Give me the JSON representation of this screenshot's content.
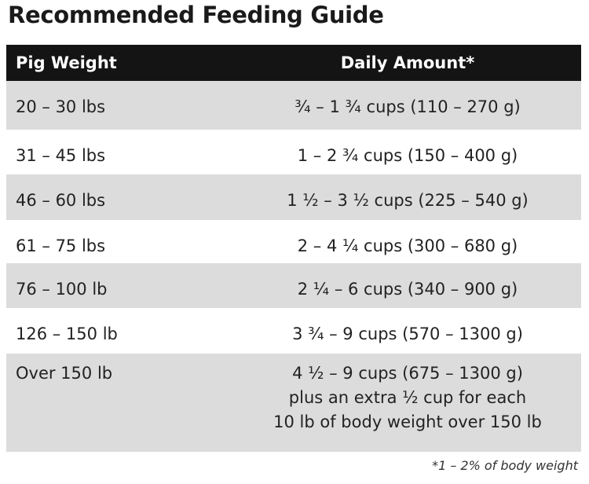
{
  "title": "Recommended Feeding Guide",
  "table": {
    "headers": [
      "Pig Weight",
      "Daily Amount*"
    ],
    "rows": [
      {
        "weight": "20 – 30 lbs",
        "amount": [
          "¾ – 1 ¾ cups (110 – 270 g)"
        ]
      },
      {
        "weight": "31 – 45 lbs",
        "amount": [
          "1 – 2 ¾ cups (150 – 400 g)"
        ]
      },
      {
        "weight": "46 – 60 lbs",
        "amount": [
          "1 ½ – 3 ½ cups (225 – 540 g)"
        ]
      },
      {
        "weight": "61 – 75 lbs",
        "amount": [
          "2 – 4 ¼ cups (300 – 680 g)"
        ]
      },
      {
        "weight": "76 – 100 lb",
        "amount": [
          "2 ¼ – 6 cups (340 – 900 g)"
        ]
      },
      {
        "weight": "126 – 150 lb",
        "amount": [
          "3 ¾ – 9 cups (570 – 1300 g)"
        ]
      },
      {
        "weight": "Over 150 lb",
        "amount": [
          "4 ½ – 9 cups (675 – 1300 g)",
          "plus an extra ½ cup for each",
          "10 lb of body weight over 150 lb"
        ]
      }
    ]
  },
  "footnote": "*1 – 2% of body weight"
}
